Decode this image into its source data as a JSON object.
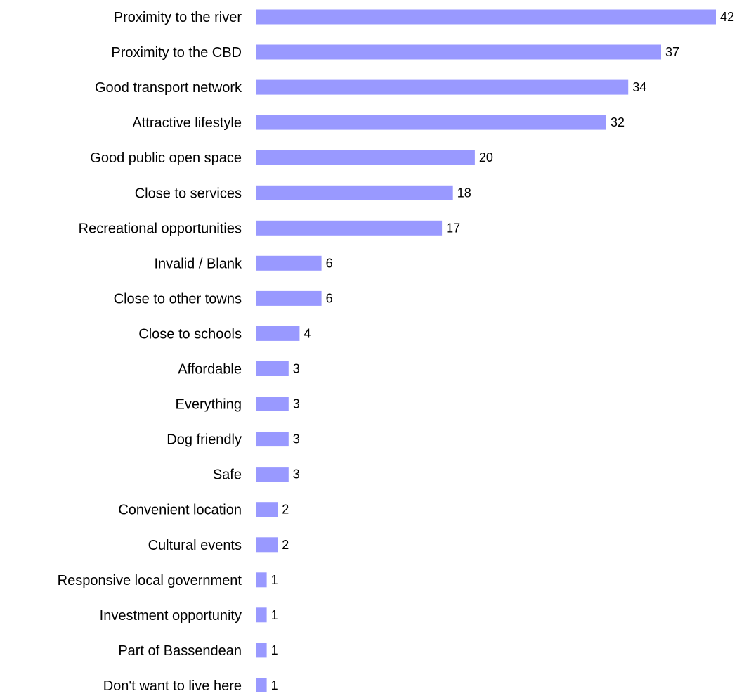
{
  "chart_data": {
    "type": "bar",
    "orientation": "horizontal",
    "categories": [
      "Proximity to the river",
      "Proximity to the CBD",
      "Good transport network",
      "Attractive lifestyle",
      "Good public open space",
      "Close to services",
      "Recreational opportunities",
      "Invalid / Blank",
      "Close to other towns",
      "Close to schools",
      "Affordable",
      "Everything",
      "Dog friendly",
      "Safe",
      "Convenient location",
      "Cultural events",
      "Responsive local government",
      "Investment opportunity",
      "Part of Bassendean",
      "Don't want to live here"
    ],
    "values": [
      42,
      37,
      34,
      32,
      20,
      18,
      17,
      6,
      6,
      4,
      3,
      3,
      3,
      3,
      2,
      2,
      1,
      1,
      1,
      1
    ],
    "title": "",
    "xlabel": "",
    "ylabel": "",
    "xlim": [
      0,
      42
    ],
    "grid": false,
    "legend": "none",
    "data_labels": true,
    "bar_color": "#9999ff",
    "text_color": "#000000"
  }
}
